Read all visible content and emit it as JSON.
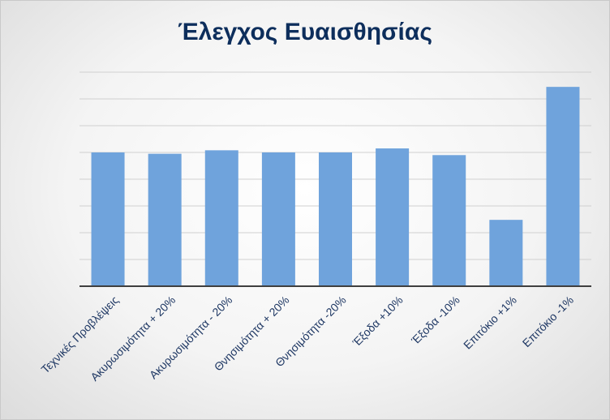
{
  "chart_data": {
    "type": "bar",
    "title": "Έλεγχος Ευαισθησίας",
    "categories": [
      "Τεχνικές Προβλέψεις",
      "Ακυρωσιμότητα + 20%",
      "Ακυρωσιμότητα - 20%",
      "Θνησιμότητα + 20%",
      "Θνησιμότητα -20%",
      "Έξοδα +10%",
      "Έξοδα -10%",
      "Επιτόκιο +1%",
      "Επιτόκιο -1%"
    ],
    "values": [
      5.0,
      4.95,
      5.08,
      5.0,
      5.0,
      5.15,
      4.9,
      2.48,
      7.45
    ],
    "ylim": [
      0,
      8
    ],
    "y_ticks_labels": "none",
    "grid": true,
    "bar_color": "#6fa3dc",
    "axis_color": "#3f3f3f",
    "gridline_color": "#d0d0d0"
  }
}
